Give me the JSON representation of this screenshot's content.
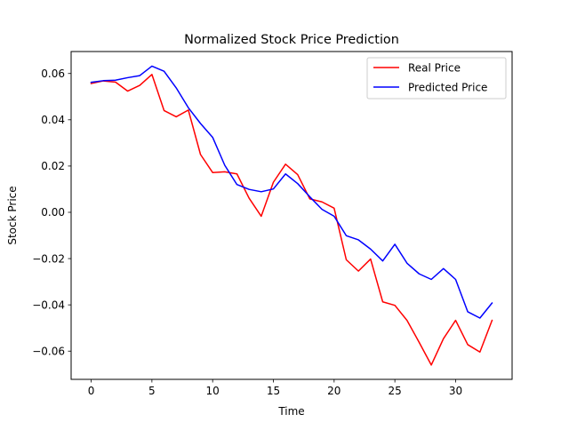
{
  "chart_data": {
    "type": "line",
    "title": "Normalized Stock Price Prediction",
    "xlabel": "Time",
    "ylabel": "Stock Price",
    "xlim": [
      -1.65,
      34.65
    ],
    "ylim": [
      -0.0722,
      0.0695
    ],
    "xticks": [
      0,
      5,
      10,
      15,
      20,
      25,
      30
    ],
    "xtick_labels": [
      "0",
      "5",
      "10",
      "15",
      "20",
      "25",
      "30"
    ],
    "yticks": [
      -0.06,
      -0.04,
      -0.02,
      0.0,
      0.02,
      0.04,
      0.06
    ],
    "ytick_labels": [
      "−0.06",
      "−0.04",
      "−0.02",
      "0.00",
      "0.02",
      "0.04",
      "0.06"
    ],
    "grid": false,
    "legend_position": "top-right",
    "x": [
      0,
      1,
      2,
      3,
      4,
      5,
      6,
      7,
      8,
      9,
      10,
      11,
      12,
      13,
      14,
      15,
      16,
      17,
      18,
      19,
      20,
      21,
      22,
      23,
      24,
      25,
      26,
      27,
      28,
      29,
      30,
      31,
      32,
      33
    ],
    "series": [
      {
        "name": "Real Price",
        "color": "#ff0000",
        "values": [
          0.0557,
          0.0568,
          0.0563,
          0.0524,
          0.0549,
          0.0596,
          0.044,
          0.0413,
          0.0442,
          0.025,
          0.0172,
          0.0175,
          0.0166,
          0.0061,
          -0.0017,
          0.013,
          0.0208,
          0.0163,
          0.0058,
          0.0045,
          0.0018,
          -0.0205,
          -0.0254,
          -0.0202,
          -0.0387,
          -0.0402,
          -0.0467,
          -0.0562,
          -0.066,
          -0.0546,
          -0.0467,
          -0.0572,
          -0.0604,
          -0.0467
        ]
      },
      {
        "name": "Predicted Price",
        "color": "#0000ff",
        "values": [
          0.0562,
          0.0569,
          0.0571,
          0.0582,
          0.0591,
          0.0632,
          0.061,
          0.0538,
          0.0452,
          0.0384,
          0.0324,
          0.0203,
          0.012,
          0.0099,
          0.0089,
          0.0101,
          0.0166,
          0.0124,
          0.0067,
          0.0013,
          -0.0017,
          -0.0101,
          -0.0119,
          -0.0159,
          -0.021,
          -0.0138,
          -0.022,
          -0.0266,
          -0.029,
          -0.0243,
          -0.029,
          -0.043,
          -0.0457,
          -0.0392
        ]
      }
    ]
  }
}
